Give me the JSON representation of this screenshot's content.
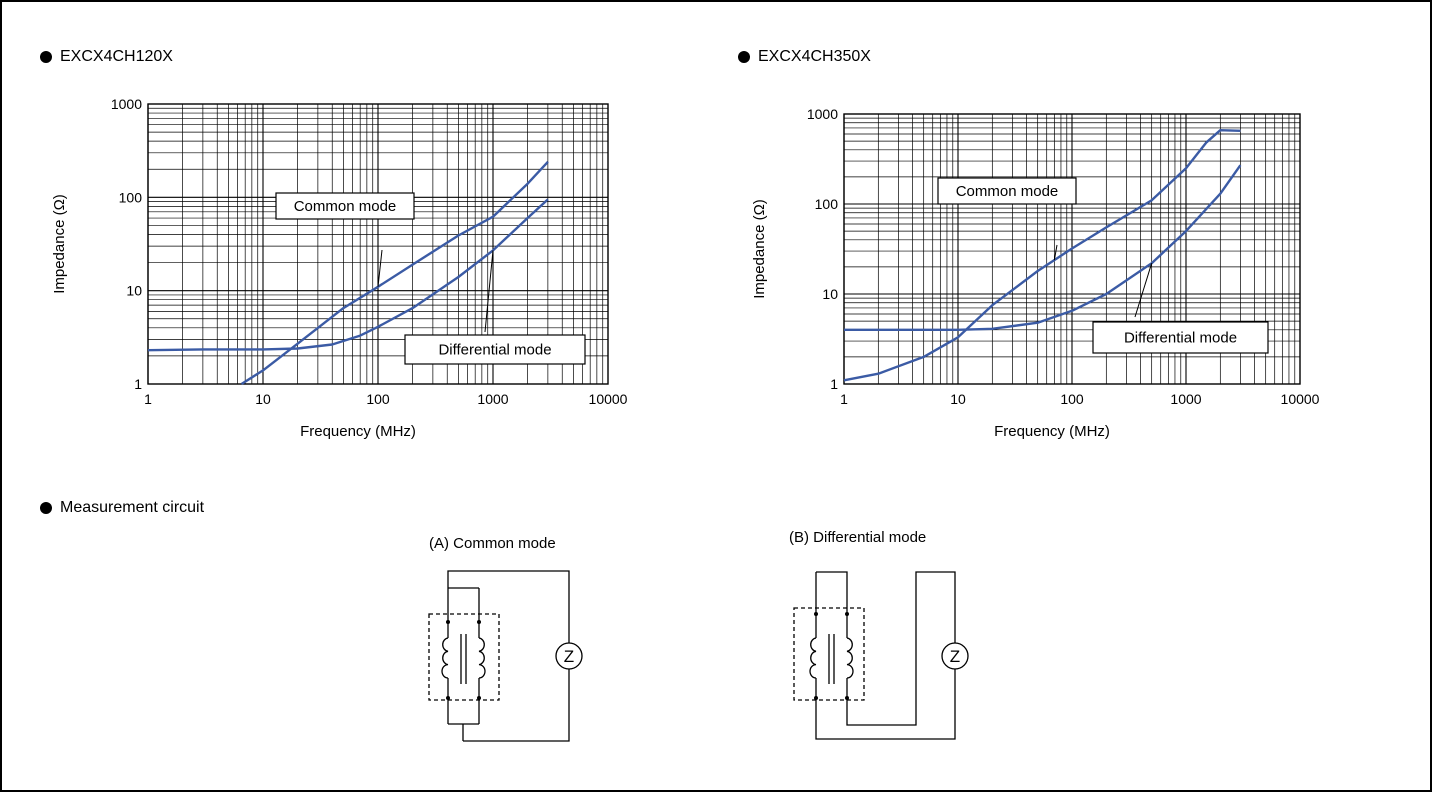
{
  "colors": {
    "curve": "#3b5ba5",
    "grid": "#000000",
    "background": "#ffffff"
  },
  "sections": {
    "chart1_title": "EXCX4CH120X",
    "chart2_title": "EXCX4CH350X",
    "circuit_title": "Measurement circuit"
  },
  "circuits": {
    "a_label": "(A) Common mode",
    "b_label": "(B) Differential mode",
    "meter_symbol": "Z"
  },
  "chart_data": [
    {
      "type": "line",
      "title": "EXCX4CH120X",
      "xlabel": "Frequency (MHz)",
      "ylabel": "Impedance (Ω)",
      "x_scale": "log",
      "y_scale": "log",
      "xlim": [
        1,
        10000
      ],
      "ylim": [
        1,
        1000
      ],
      "x_ticks": [
        "1",
        "10",
        "100",
        "1000",
        "10000"
      ],
      "y_ticks": [
        "1",
        "10",
        "100",
        "1000"
      ],
      "grid": true,
      "series": [
        {
          "name": "Common mode",
          "x": [
            6.5,
            10,
            20,
            50,
            100,
            200,
            500,
            1000,
            2000,
            3000
          ],
          "y": [
            1.0,
            1.4,
            2.7,
            6.5,
            11,
            19,
            39,
            62,
            140,
            240
          ]
        },
        {
          "name": "Differential mode",
          "x": [
            1,
            3,
            10,
            20,
            40,
            70,
            100,
            200,
            500,
            1000,
            2000,
            3000
          ],
          "y": [
            2.3,
            2.35,
            2.35,
            2.4,
            2.65,
            3.3,
            4.1,
            6.5,
            14,
            27,
            60,
            95
          ]
        }
      ],
      "annotations": [
        {
          "text": "Common mode",
          "target_series": "Common mode",
          "target_x": 100
        },
        {
          "text": "Differential mode",
          "target_series": "Differential mode",
          "target_x": 1000
        }
      ]
    },
    {
      "type": "line",
      "title": "EXCX4CH350X",
      "xlabel": "Frequency (MHz)",
      "ylabel": "Impedance (Ω)",
      "x_scale": "log",
      "y_scale": "log",
      "xlim": [
        1,
        10000
      ],
      "ylim": [
        1,
        1000
      ],
      "x_ticks": [
        "1",
        "10",
        "100",
        "1000",
        "10000"
      ],
      "y_ticks": [
        "1",
        "10",
        "100",
        "1000"
      ],
      "grid": true,
      "series": [
        {
          "name": "Common mode",
          "x": [
            1,
            2,
            5,
            10,
            20,
            50,
            100,
            200,
            500,
            1000,
            1500,
            2000,
            3000
          ],
          "y": [
            1.1,
            1.3,
            2.0,
            3.3,
            7.5,
            18,
            32,
            55,
            110,
            250,
            480,
            660,
            650
          ]
        },
        {
          "name": "Differential mode",
          "x": [
            1,
            5,
            10,
            20,
            50,
            100,
            200,
            500,
            1000,
            2000,
            3000
          ],
          "y": [
            4.0,
            4.0,
            4.0,
            4.1,
            4.8,
            6.5,
            10,
            22,
            50,
            130,
            270
          ]
        }
      ],
      "annotations": [
        {
          "text": "Common mode",
          "target_series": "Common mode",
          "target_x": 70
        },
        {
          "text": "Differential mode",
          "target_series": "Differential mode",
          "target_x": 500
        }
      ]
    }
  ]
}
